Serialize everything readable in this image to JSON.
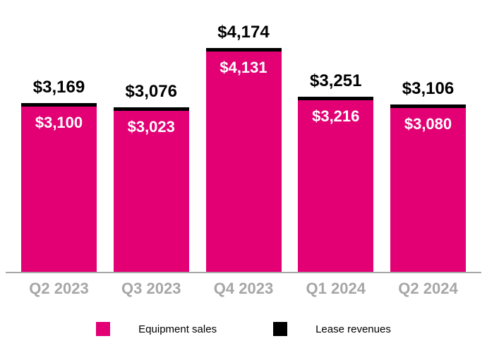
{
  "chart_data": {
    "type": "bar",
    "stacked": true,
    "title": "",
    "categories": [
      "Q2 2023",
      "Q3 2023",
      "Q4 2023",
      "Q1 2024",
      "Q2 2024"
    ],
    "series": [
      {
        "name": "Equipment sales",
        "color": "#E20074",
        "values": [
          3100,
          3023,
          4131,
          3216,
          3080
        ],
        "labels": [
          "$3,100",
          "$3,023",
          "$4,131",
          "$3,216",
          "$3,080"
        ]
      },
      {
        "name": "Lease revenues",
        "color": "#000000",
        "values": [
          69,
          53,
          43,
          35,
          26
        ],
        "labels": []
      }
    ],
    "totals": {
      "values": [
        3169,
        3076,
        4174,
        3251,
        3106
      ],
      "labels": [
        "$3,169",
        "$3,076",
        "$4,174",
        "$3,251",
        "$3,106"
      ]
    },
    "ylim": [
      0,
      4400
    ],
    "grid": false,
    "legend_position": "bottom",
    "colors": {
      "axis": "#A6A6A6",
      "category_label": "#A6A6A6",
      "total_label": "#000000",
      "bar_value_label": "#FFFFFF"
    }
  }
}
